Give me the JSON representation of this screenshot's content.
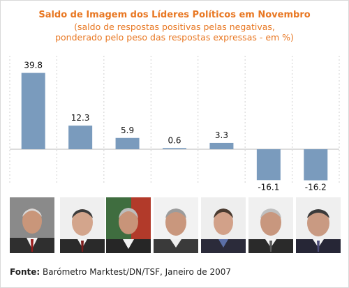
{
  "chart_data": {
    "type": "bar",
    "title": "Saldo de Imagem dos Líderes Políticos em Novembro",
    "subtitle": [
      "(saldo de respostas positivas pelas negativas,",
      "ponderado pelo peso das respostas expressas - em %)"
    ],
    "categories": [
      "",
      "",
      "",
      "",
      "",
      "",
      ""
    ],
    "values": [
      39.8,
      12.3,
      5.9,
      0.6,
      3.3,
      -16.1,
      -16.2
    ],
    "value_labels": [
      "39.8",
      "12.3",
      "5.9",
      "0.6",
      "3.3",
      "-16.1",
      "-16.2"
    ],
    "xlabel": "",
    "ylabel": "",
    "grid": false,
    "bar_color": "#7a9bbd"
  },
  "colors": {
    "accent": "#e87722",
    "bar": "#7a9bbd",
    "axis": "#b8b8b8",
    "separator": "#d0d0d0"
  },
  "source": {
    "label": "Fonte:",
    "text": "Barómetro Marktest/DN/TSF, Janeiro de 2007"
  }
}
